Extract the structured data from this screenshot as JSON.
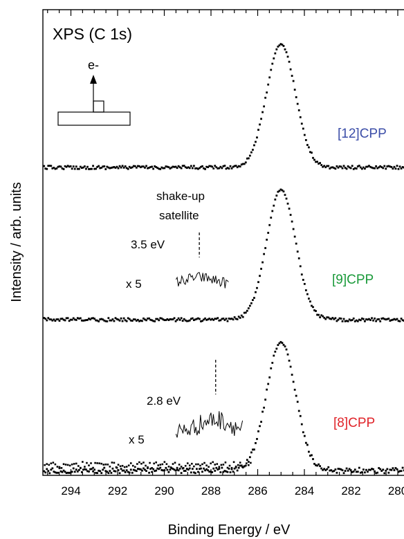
{
  "chart_data": {
    "type": "scatter",
    "title": "XPS (C 1s)",
    "xlabel": "Binding Energy / eV",
    "ylabel": "Intensity / arb. units",
    "xlim": [
      295.2,
      279.2
    ],
    "xaxis_reversed": true,
    "xticks": [
      294,
      292,
      290,
      288,
      286,
      284,
      282,
      280
    ],
    "grid": false,
    "inset_label": "e-",
    "series": [
      {
        "name": "[12]CPP",
        "color": "#3c4ea8",
        "peak_energy": 285.0,
        "peak_width": 0.62,
        "relative_peak_intensity": 1.0,
        "satellite": null
      },
      {
        "name": "[9]CPP",
        "color": "#1a9a3a",
        "peak_energy": 285.0,
        "peak_width": 0.62,
        "relative_peak_intensity": 1.0,
        "satellite": {
          "shift_label": "3.5 eV",
          "magnification_label": "x 5",
          "caption_line1": "shake-up",
          "caption_line2": "satellite",
          "marker_energy": 288.5,
          "range": [
            289.5,
            287.2
          ]
        }
      },
      {
        "name": "[8]CPP",
        "color": "#e0242a",
        "peak_energy": 285.0,
        "peak_width": 0.62,
        "relative_peak_intensity": 1.0,
        "satellite": {
          "shift_label": "2.8 eV",
          "magnification_label": "x 5",
          "marker_energy": 287.8,
          "range": [
            289.5,
            286.6
          ]
        }
      }
    ]
  }
}
